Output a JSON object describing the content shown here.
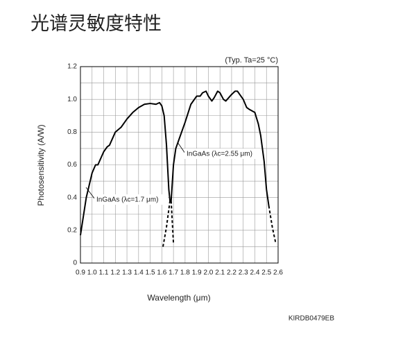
{
  "chart_data": {
    "type": "line",
    "title": "光谱灵敏度特性",
    "subtitle": "(Typ. Ta=25 °C)",
    "x_label": "Wavelength (μm)",
    "y_label": "Photosensitivity (A/W)",
    "code": "KIRDB0479EB",
    "xlim": [
      0.9,
      2.6
    ],
    "ylim": [
      0,
      1.2
    ],
    "xticks": [
      0.9,
      {
        "value": 1,
        "label": "1.0"
      },
      1.1,
      1.2,
      1.3,
      1.4,
      1.5,
      1.6,
      1.7,
      1.8,
      1.9,
      {
        "value": 2,
        "label": "2.0"
      },
      2.1,
      2.2,
      2.3,
      2.4,
      2.5,
      2.6
    ],
    "yticks": [
      0,
      0.2,
      0.4,
      0.6,
      0.8,
      {
        "value": 1,
        "label": "1.0"
      },
      1.2
    ],
    "yminor": [
      0.1,
      0.3,
      0.5,
      0.7,
      0.9,
      1.1
    ],
    "grid": true,
    "series": [
      {
        "name": "InGaAs (λc=1.7 μm)",
        "color": "#000000",
        "dashed": false,
        "x": [
          0.9,
          0.95,
          1.0,
          1.03,
          1.05,
          1.1,
          1.13,
          1.15,
          1.2,
          1.25,
          1.3,
          1.35,
          1.4,
          1.45,
          1.5,
          1.55,
          1.58,
          1.6,
          1.62,
          1.64,
          1.66,
          1.67
        ],
        "values": [
          0.17,
          0.4,
          0.55,
          0.6,
          0.6,
          0.68,
          0.71,
          0.72,
          0.8,
          0.83,
          0.88,
          0.92,
          0.95,
          0.97,
          0.975,
          0.97,
          0.98,
          0.96,
          0.9,
          0.72,
          0.45,
          0.38
        ]
      },
      {
        "color": "#000000",
        "dashed": true,
        "x": [
          1.61,
          1.64,
          1.67
        ],
        "values": [
          0.1,
          0.22,
          0.38
        ]
      },
      {
        "color": "#000000",
        "dashed": true,
        "x": [
          1.68,
          1.69,
          1.7
        ],
        "values": [
          0.38,
          0.25,
          0.12
        ]
      },
      {
        "name": "InGaAs (λc=2.55 μm)",
        "color": "#000000",
        "dashed": false,
        "x": [
          1.68,
          1.7,
          1.72,
          1.75,
          1.8,
          1.85,
          1.9,
          1.93,
          1.95,
          1.98,
          2.0,
          2.03,
          2.05,
          2.08,
          2.1,
          2.13,
          2.15,
          2.2,
          2.23,
          2.25,
          2.3,
          2.33,
          2.35,
          2.4,
          2.43,
          2.45,
          2.48,
          2.5,
          2.52
        ],
        "values": [
          0.38,
          0.6,
          0.7,
          0.76,
          0.86,
          0.97,
          1.02,
          1.02,
          1.04,
          1.05,
          1.02,
          0.99,
          1.01,
          1.05,
          1.04,
          1.0,
          0.99,
          1.03,
          1.05,
          1.05,
          1.0,
          0.95,
          0.94,
          0.92,
          0.85,
          0.78,
          0.62,
          0.45,
          0.35
        ]
      },
      {
        "color": "#000000",
        "dashed": true,
        "x": [
          2.52,
          2.55,
          2.58
        ],
        "values": [
          0.35,
          0.22,
          0.12
        ]
      }
    ]
  }
}
